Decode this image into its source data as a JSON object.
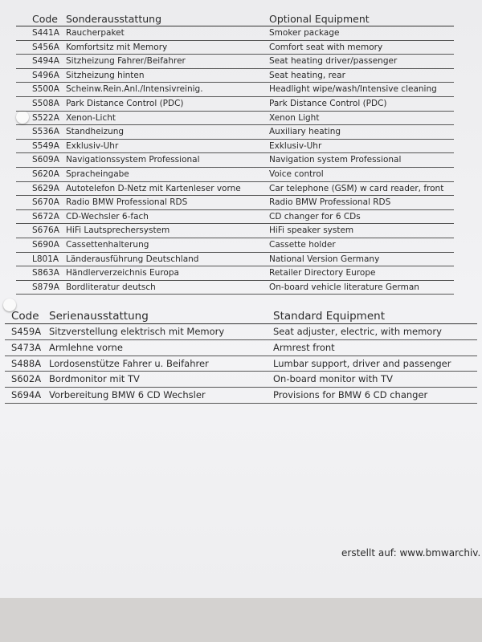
{
  "optional": {
    "header": [
      "Code",
      "Sonderausstattung",
      "Optional Equipment"
    ],
    "rows": [
      [
        "S441A",
        "Raucherpaket",
        "Smoker package"
      ],
      [
        "S456A",
        "Komfortsitz mit Memory",
        "Comfort seat with memory"
      ],
      [
        "S494A",
        "Sitzheizung Fahrer/Beifahrer",
        "Seat heating driver/passenger"
      ],
      [
        "S496A",
        "Sitzheizung hinten",
        "Seat heating, rear"
      ],
      [
        "S500A",
        "Scheinw.Rein.Anl./Intensivreinig.",
        "Headlight wipe/wash/Intensive cleaning"
      ],
      [
        "S508A",
        "Park Distance Control (PDC)",
        "Park Distance Control (PDC)"
      ],
      [
        "S522A",
        "Xenon-Licht",
        "Xenon Light"
      ],
      [
        "S536A",
        "Standheizung",
        "Auxiliary heating"
      ],
      [
        "S549A",
        "Exklusiv-Uhr",
        "Exklusiv-Uhr"
      ],
      [
        "S609A",
        "Navigationssystem Professional",
        "Navigation system Professional"
      ],
      [
        "S620A",
        "Spracheingabe",
        "Voice control"
      ],
      [
        "S629A",
        "Autotelefon D-Netz mit Kartenleser vorne",
        "Car telephone (GSM) w card reader, front"
      ],
      [
        "S670A",
        "Radio BMW Professional RDS",
        "Radio BMW Professional RDS"
      ],
      [
        "S672A",
        "CD-Wechsler 6-fach",
        "CD changer for 6 CDs"
      ],
      [
        "S676A",
        "HiFi Lautsprechersystem",
        "HiFi speaker system"
      ],
      [
        "S690A",
        "Cassettenhalterung",
        "Cassette holder"
      ],
      [
        "L801A",
        "Länderausführung Deutschland",
        "National Version Germany"
      ],
      [
        "S863A",
        "Händlerverzeichnis Europa",
        "Retailer Directory Europe"
      ],
      [
        "S879A",
        "Bordliteratur deutsch",
        "On-board vehicle literature German"
      ]
    ]
  },
  "standard": {
    "header": [
      "Code",
      "Serienausstattung",
      "Standard Equipment"
    ],
    "rows": [
      [
        "S459A",
        "Sitzverstellung elektrisch mit Memory",
        "Seat adjuster, electric, with memory"
      ],
      [
        "S473A",
        "Armlehne vorne",
        "Armrest front"
      ],
      [
        "S488A",
        "Lordosenstütze Fahrer u. Beifahrer",
        "Lumbar support, driver and passenger"
      ],
      [
        "S602A",
        "Bordmonitor mit TV",
        "On-board monitor with TV"
      ],
      [
        "S694A",
        "Vorbereitung BMW 6 CD Wechsler",
        "Provisions for BMW 6 CD changer"
      ]
    ]
  },
  "footer": "erstellt auf: www.bmwarchiv."
}
